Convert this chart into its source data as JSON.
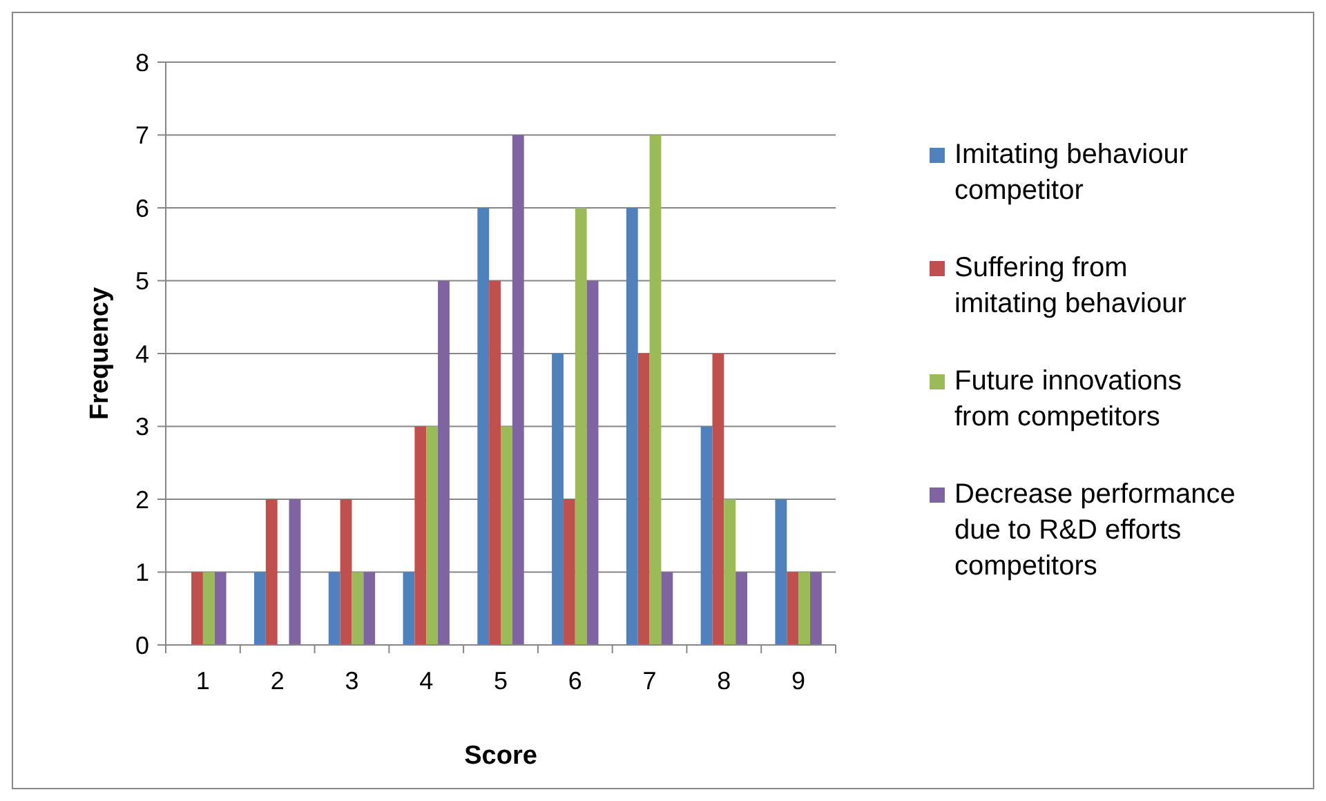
{
  "chart_data": {
    "type": "bar",
    "xlabel": "Score",
    "ylabel": "Frequency",
    "categories": [
      "1",
      "2",
      "3",
      "4",
      "5",
      "6",
      "7",
      "8",
      "9"
    ],
    "series": [
      {
        "name": "Imitating behaviour competitor",
        "color": "#4f81bd",
        "values": [
          0,
          1,
          1,
          1,
          6,
          4,
          6,
          3,
          2
        ]
      },
      {
        "name": "Suffering from imitating behaviour",
        "color": "#c0504d",
        "values": [
          1,
          2,
          2,
          3,
          5,
          2,
          4,
          4,
          1
        ]
      },
      {
        "name": "Future innovations from competitors",
        "color": "#9bbb59",
        "values": [
          1,
          0,
          1,
          3,
          3,
          6,
          7,
          2,
          1
        ]
      },
      {
        "name": "Decrease performance due to R&D efforts competitors",
        "color": "#8064a2",
        "values": [
          1,
          2,
          1,
          5,
          7,
          5,
          1,
          1,
          1
        ]
      }
    ],
    "ylim": [
      0,
      8
    ],
    "yticks": [
      0,
      1,
      2,
      3,
      4,
      5,
      6,
      7,
      8
    ],
    "grid": "y",
    "legend": "right"
  }
}
